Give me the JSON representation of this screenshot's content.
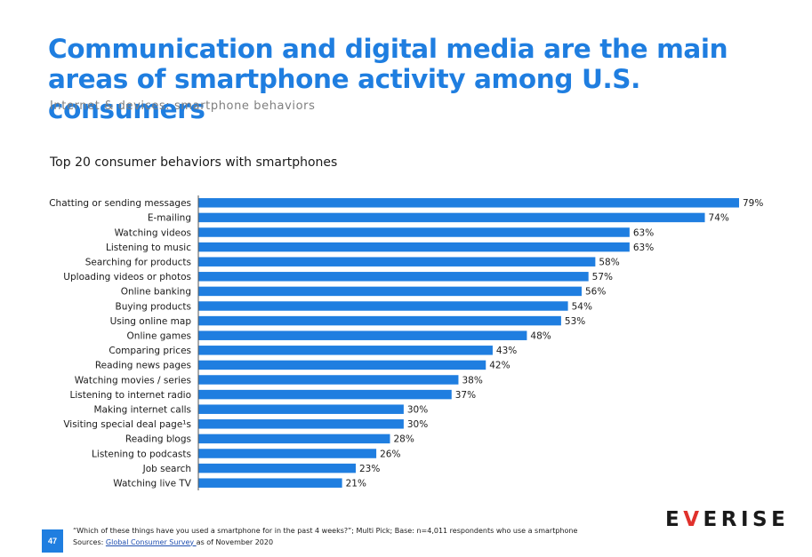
{
  "header": {
    "title": "Communication and digital media are the main areas of smartphone activity among U.S. consumers",
    "subtitle": "Internet & devices: smartphone behaviors"
  },
  "chart_data": {
    "type": "bar",
    "orientation": "horizontal",
    "title": "Top 20 consumer behaviors with smartphones",
    "unit": "%",
    "color": "#1f7ee0",
    "categories": [
      "Chatting or sending messages",
      "E-mailing",
      "Watching videos",
      "Listening to music",
      "Searching for products",
      "Uploading videos or photos",
      "Online banking",
      "Buying products",
      "Using online map",
      "Online games",
      "Comparing prices",
      "Reading news pages",
      "Watching movies / series",
      "Listening to internet radio",
      "Making internet calls",
      "Visiting special deal page¹s",
      "Reading blogs",
      "Listening to podcasts",
      "Job search",
      "Watching live TV"
    ],
    "values": [
      79,
      74,
      63,
      63,
      58,
      57,
      56,
      54,
      53,
      48,
      43,
      42,
      38,
      37,
      30,
      30,
      28,
      26,
      23,
      21
    ],
    "value_labels": [
      "79%",
      "74%",
      "63%",
      "63%",
      "58%",
      "57%",
      "56%",
      "54%",
      "53%",
      "48%",
      "43%",
      "42%",
      "38%",
      "37%",
      "30%",
      "30%",
      "28%",
      "26%",
      "23%",
      "21%"
    ]
  },
  "footer": {
    "page_number": "47",
    "note": "“Which of these things have you used a smartphone for in the past 4 weeks?”; Multi Pick; Base: n=4,011 respondents who use a smartphone",
    "sources_prefix": "Sources: ",
    "sources_link": "Global Consumer Survey ",
    "sources_suffix": "as of November 2020",
    "logo_pre": "E",
    "logo_v": "V",
    "logo_post": "ERISE"
  }
}
